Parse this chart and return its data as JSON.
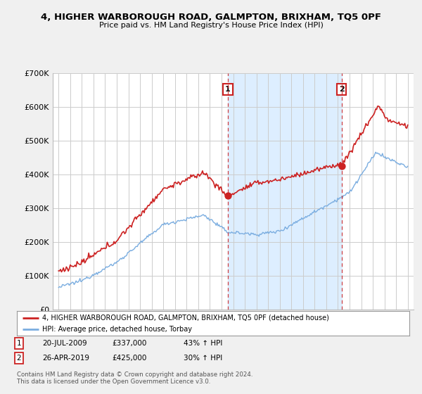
{
  "title": "4, HIGHER WARBOROUGH ROAD, GALMPTON, BRIXHAM, TQ5 0PF",
  "subtitle": "Price paid vs. HM Land Registry's House Price Index (HPI)",
  "ylim": [
    0,
    700000
  ],
  "yticks": [
    0,
    100000,
    200000,
    300000,
    400000,
    500000,
    600000,
    700000
  ],
  "ytick_labels": [
    "£0",
    "£100K",
    "£200K",
    "£300K",
    "£400K",
    "£500K",
    "£600K",
    "£700K"
  ],
  "bg_color": "#f0f0f0",
  "plot_bg_color": "#ffffff",
  "shade_color": "#ddeeff",
  "red_color": "#cc2222",
  "blue_color": "#7aade0",
  "legend1_label": "4, HIGHER WARBOROUGH ROAD, GALMPTON, BRIXHAM, TQ5 0PF (detached house)",
  "legend2_label": "HPI: Average price, detached house, Torbay",
  "sale1_date_x": 2009.55,
  "sale1_price": 337000,
  "sale1_label": "1",
  "sale2_date_x": 2019.32,
  "sale2_price": 425000,
  "sale2_label": "2",
  "xlim_left": 1994.5,
  "xlim_right": 2025.5,
  "annotation1_date": "20-JUL-2009",
  "annotation1_price": "£337,000",
  "annotation1_pct": "43% ↑ HPI",
  "annotation2_date": "26-APR-2019",
  "annotation2_price": "£425,000",
  "annotation2_pct": "30% ↑ HPI",
  "footer1": "Contains HM Land Registry data © Crown copyright and database right 2024.",
  "footer2": "This data is licensed under the Open Government Licence v3.0."
}
